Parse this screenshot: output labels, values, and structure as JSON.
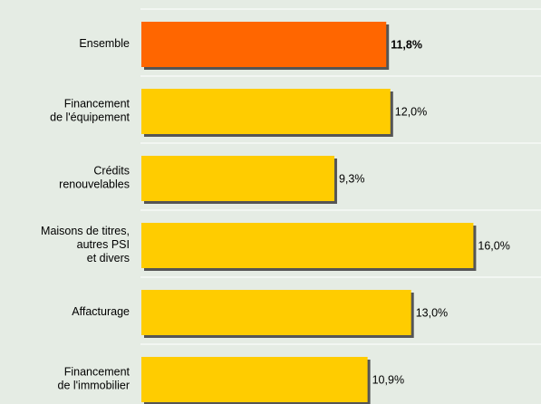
{
  "chart_data": {
    "type": "bar",
    "orientation": "horizontal",
    "categories": [
      "Ensemble",
      "Financement\nde l'équipement",
      "Crédits\nrenouvelables",
      "Maisons de titres,\nautres PSI\net divers",
      "Affacturage",
      "Financement\nde l'immobilier"
    ],
    "values": [
      11.8,
      12.0,
      9.3,
      16.0,
      13.0,
      10.9
    ],
    "value_labels": [
      "11,8%",
      "12,0%",
      "9,3%",
      "16,0%",
      "13,0%",
      "10,9%"
    ],
    "colors": [
      "#ff6600",
      "#ffcc00",
      "#ffcc00",
      "#ffcc00",
      "#ffcc00",
      "#ffcc00"
    ],
    "highlight": 0
  }
}
